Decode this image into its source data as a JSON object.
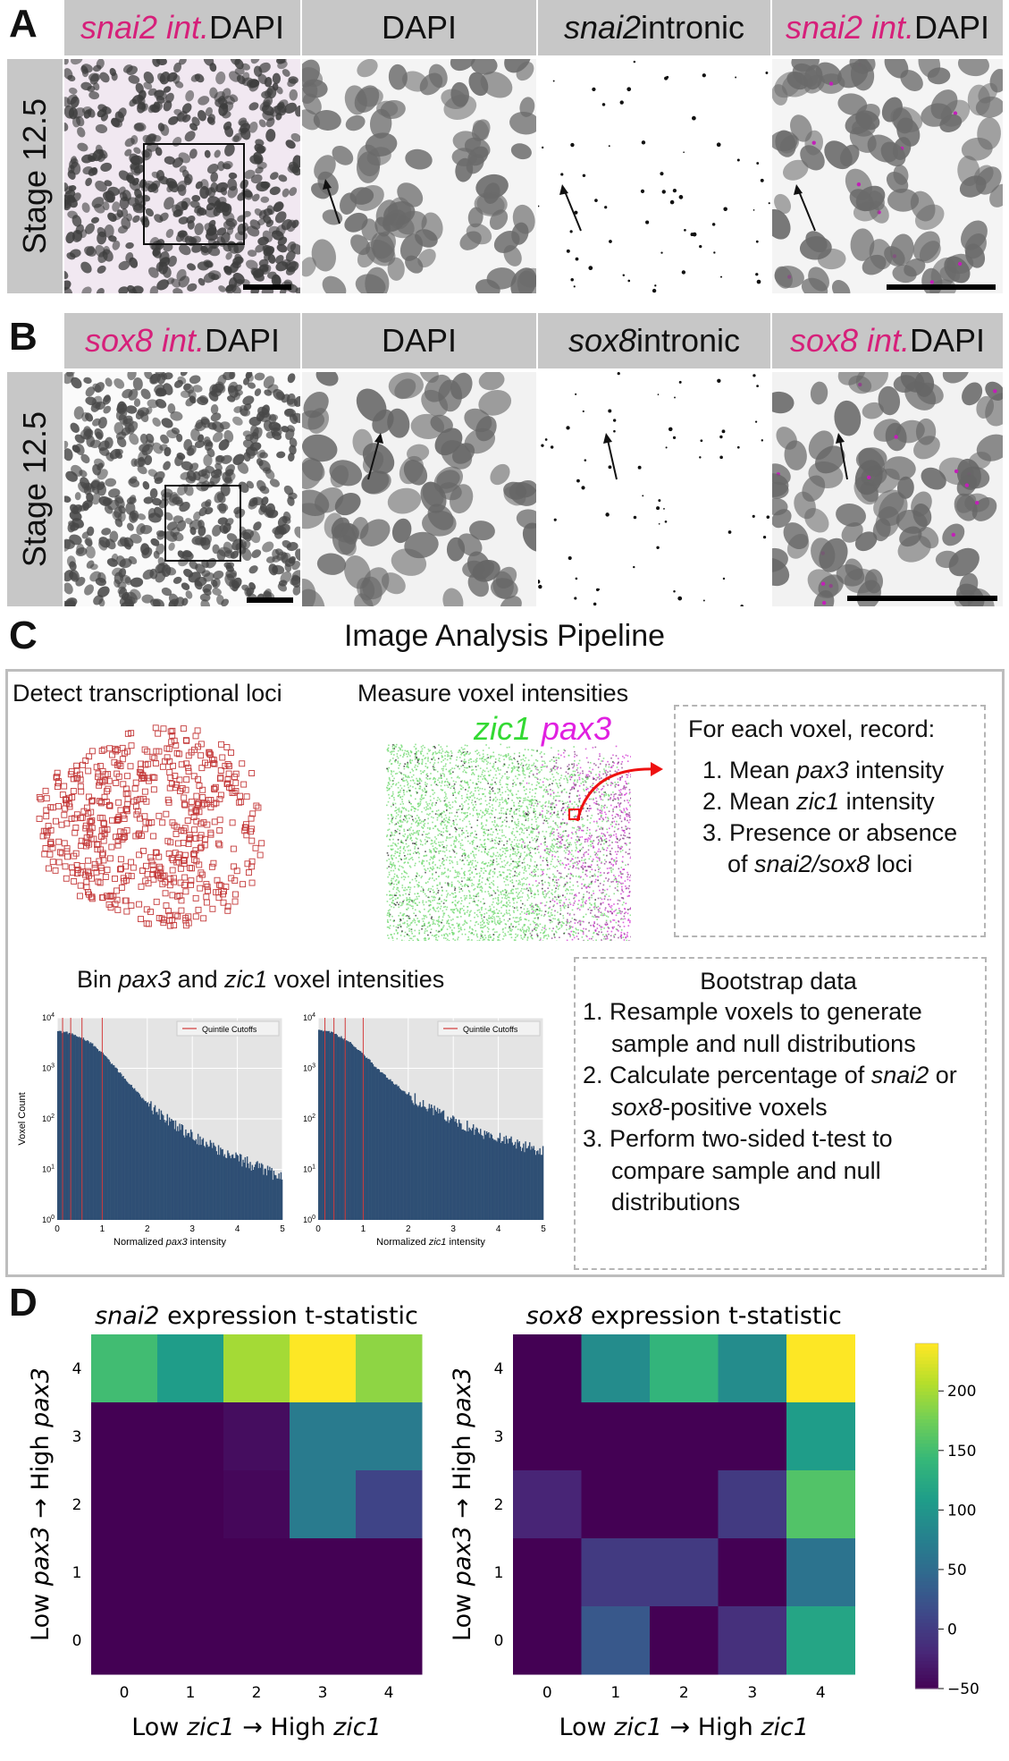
{
  "panels": {
    "a": {
      "letter": "A",
      "stage": "Stage 12.5",
      "headers": [
        {
          "gene": "snai2 int.",
          "rest": " DAPI"
        },
        {
          "plain": "DAPI"
        },
        {
          "gene": "snai2",
          "rest": " intronic"
        },
        {
          "gene": "snai2 int.",
          "rest": " DAPI"
        }
      ]
    },
    "b": {
      "letter": "B",
      "stage": "Stage 12.5",
      "headers": [
        {
          "gene": "sox8 int.",
          "rest": " DAPI"
        },
        {
          "plain": "DAPI"
        },
        {
          "gene": "sox8",
          "rest": " intronic"
        },
        {
          "gene": "sox8 int.",
          "rest": " DAPI"
        }
      ]
    },
    "c": {
      "letter": "C",
      "title": "Image Analysis Pipeline",
      "detect_title": "Detect transcriptional loci",
      "measure_title": "Measure voxel intensities",
      "label_zic1": "zic1",
      "label_pax3": "pax3",
      "record": {
        "title": "For each voxel, record:",
        "items": [
          {
            "pre": "1. Mean ",
            "it": "pax3",
            "post": " intensity"
          },
          {
            "pre": "2. Mean ",
            "it": "zic1",
            "post": " intensity"
          },
          {
            "pre": "3. Presence or absence",
            "it": "",
            "post": ""
          },
          {
            "pre": "of ",
            "it": "snai2/sox8",
            "post": " loci"
          }
        ]
      },
      "bin_title": {
        "pre": "Bin ",
        "it1": "pax3",
        "mid": " and ",
        "it2": "zic1",
        "post": " voxel intensities"
      },
      "bootstrap": {
        "title": "Bootstrap data",
        "lines": [
          {
            "pre": "1. Resample voxels to generate",
            "it": "",
            "post": ""
          },
          {
            "pre": "sample and null distributions",
            "it": "",
            "post": ""
          },
          {
            "pre": "2. Calculate percentage of ",
            "it": "snai2",
            "post": " or"
          },
          {
            "pre": "",
            "it": "sox8",
            "post": "-positive voxels"
          },
          {
            "pre": "3. Perform two-sided t-test to",
            "it": "",
            "post": ""
          },
          {
            "pre": "compare sample and null",
            "it": "",
            "post": ""
          },
          {
            "pre": "distributions",
            "it": "",
            "post": ""
          }
        ]
      }
    },
    "d": {
      "letter": "D"
    }
  },
  "chart_data": [
    {
      "type": "bar",
      "title": "",
      "legend": "Quintile Cutoffs",
      "xlabel": "Normalized pax3 intensity",
      "ylabel": "Voxel Count",
      "xticks": [
        "0",
        "1",
        "2",
        "3",
        "4",
        "5"
      ],
      "yticks": [
        "10^0",
        "10^1",
        "10^2",
        "10^3",
        "10^4"
      ],
      "xlim": [
        0,
        5
      ],
      "ylim_log10": [
        0,
        4
      ],
      "cutoffs": [
        0.12,
        0.3,
        0.55,
        1.0
      ],
      "x": [
        0.05,
        0.25,
        0.5,
        0.75,
        1.0,
        1.25,
        1.5,
        1.75,
        2.0,
        2.25,
        2.5,
        2.75,
        3.0,
        3.25,
        3.5,
        3.75,
        4.0,
        4.25,
        4.5,
        4.75,
        5.0
      ],
      "log10_counts": [
        3.72,
        3.7,
        3.62,
        3.5,
        3.3,
        3.05,
        2.8,
        2.55,
        2.3,
        2.1,
        1.95,
        1.8,
        1.65,
        1.52,
        1.42,
        1.32,
        1.22,
        1.12,
        1.02,
        0.92,
        0.85
      ]
    },
    {
      "type": "bar",
      "title": "",
      "legend": "Quintile Cutoffs",
      "xlabel": "Normalized zic1 intensity",
      "ylabel": "",
      "xticks": [
        "0",
        "1",
        "2",
        "3",
        "4",
        "5"
      ],
      "yticks": [
        "10^0",
        "10^1",
        "10^2",
        "10^3",
        "10^4"
      ],
      "xlim": [
        0,
        5
      ],
      "ylim_log10": [
        0,
        4
      ],
      "cutoffs": [
        0.15,
        0.35,
        0.6,
        1.0
      ],
      "x": [
        0.05,
        0.25,
        0.5,
        0.75,
        1.0,
        1.25,
        1.5,
        1.75,
        2.0,
        2.25,
        2.5,
        2.75,
        3.0,
        3.25,
        3.5,
        3.75,
        4.0,
        4.25,
        4.5,
        4.75,
        5.0
      ],
      "log10_counts": [
        3.75,
        3.72,
        3.62,
        3.48,
        3.28,
        3.05,
        2.85,
        2.65,
        2.48,
        2.32,
        2.2,
        2.08,
        1.98,
        1.88,
        1.78,
        1.7,
        1.62,
        1.55,
        1.48,
        1.42,
        1.35
      ]
    },
    {
      "type": "heatmap",
      "title": "snai2 expression t-statistic",
      "xlabel": "Low zic1 → High zic1",
      "ylabel": "Low pax3 → High pax3",
      "x": [
        "0",
        "1",
        "2",
        "3",
        "4"
      ],
      "y": [
        "4",
        "3",
        "2",
        "1",
        "0"
      ],
      "values": [
        [
          150,
          110,
          200,
          240,
          190
        ],
        [
          -50,
          -50,
          -40,
          70,
          70
        ],
        [
          -50,
          -50,
          -45,
          70,
          10
        ],
        [
          -50,
          -50,
          -50,
          -50,
          -50
        ],
        [
          -50,
          -50,
          -50,
          -50,
          -50
        ]
      ]
    },
    {
      "type": "heatmap",
      "title": "sox8 expression t-statistic",
      "xlabel": "Low zic1 → High zic1",
      "ylabel": "Low pax3 → High pax3",
      "x": [
        "0",
        "1",
        "2",
        "3",
        "4"
      ],
      "y": [
        "4",
        "3",
        "2",
        "1",
        "0"
      ],
      "values": [
        [
          -50,
          90,
          140,
          90,
          240
        ],
        [
          -50,
          -50,
          -50,
          -50,
          110
        ],
        [
          -20,
          -50,
          -50,
          0,
          160
        ],
        [
          -50,
          0,
          0,
          -50,
          60
        ],
        [
          -50,
          30,
          -50,
          -10,
          120
        ]
      ],
      "colorbar": {
        "min": -50,
        "max": 240,
        "ticks": [
          "200",
          "150",
          "100",
          "50",
          "0",
          "−50"
        ]
      }
    }
  ]
}
